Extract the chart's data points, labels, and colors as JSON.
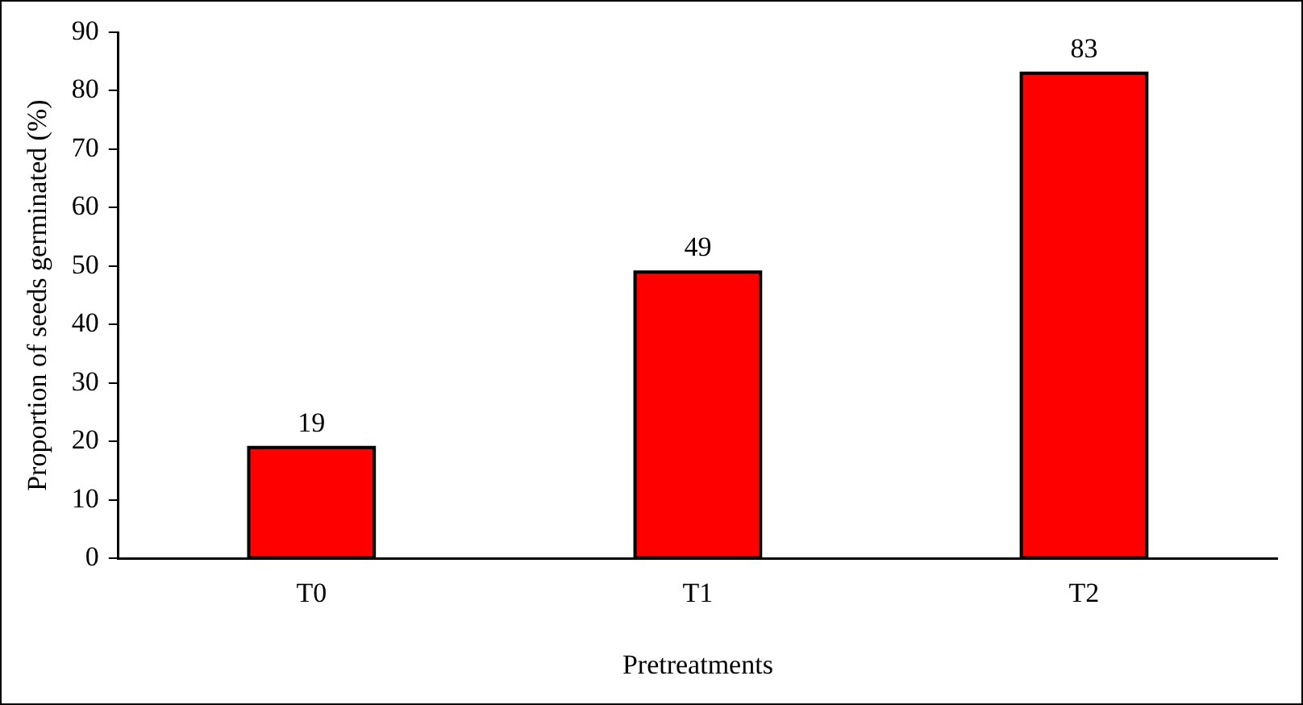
{
  "chart_data": {
    "type": "bar",
    "xlabel": "Pretreatments",
    "ylabel": "Proportion of seeds germinated (%)",
    "categories": [
      "T0",
      "T1",
      "T2"
    ],
    "values": [
      19,
      49,
      83
    ],
    "color": "#ff0000",
    "ylim": [
      0,
      90
    ],
    "yticks": [
      0,
      10,
      20,
      30,
      40,
      50,
      60,
      70,
      80,
      90
    ],
    "grid": false,
    "legend": false,
    "data_labels": true
  }
}
